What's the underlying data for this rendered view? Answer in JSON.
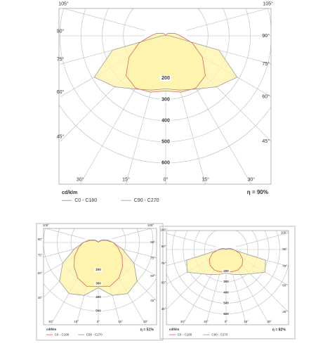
{
  "chart_data": [
    {
      "type": "polar",
      "unit": "cd/klm",
      "efficiency": "η = 90%",
      "angles": [
        0,
        15,
        30,
        45,
        60,
        75,
        90,
        105,
        120,
        135,
        150,
        165,
        180
      ],
      "rlim": [
        0,
        700
      ],
      "rticks": [
        200,
        300,
        400,
        500,
        600
      ],
      "angle_ticks": [
        {
          "value": 0,
          "label": "0°"
        },
        {
          "value": 15,
          "label": "15°"
        },
        {
          "value": 30,
          "label": "30°"
        },
        {
          "value": 45,
          "label": "45°"
        },
        {
          "value": 60,
          "label": "60°"
        },
        {
          "value": 75,
          "label": "75°"
        },
        {
          "value": 90,
          "label": "90°"
        },
        {
          "value": 105,
          "label": "105°"
        }
      ],
      "fill_color": "#fff4a8",
      "series": [
        {
          "name": "C0 - C180",
          "color": "#e06060",
          "values": [
            260,
            275,
            285,
            265,
            200,
            130,
            70,
            45,
            25,
            15,
            10,
            5,
            5
          ]
        },
        {
          "name": "C90 - C270",
          "color": "#9a9a9a",
          "values": [
            250,
            265,
            290,
            340,
            390,
            260,
            20,
            5,
            0,
            0,
            0,
            0,
            0
          ]
        }
      ]
    },
    {
      "type": "polar",
      "unit": "cd/klm",
      "efficiency": "η = 51%",
      "angles": [
        0,
        15,
        30,
        45,
        60,
        75,
        90,
        105,
        120,
        135,
        150,
        165,
        180
      ],
      "rlim": [
        0,
        600
      ],
      "rticks": [
        200,
        300,
        400,
        500
      ],
      "angle_ticks": [
        {
          "value": 0,
          "label": "0°"
        },
        {
          "value": 15,
          "label": "15°"
        },
        {
          "value": 30,
          "label": "30°"
        },
        {
          "value": 45,
          "label": "45°"
        },
        {
          "value": 60,
          "label": "60°"
        },
        {
          "value": 75,
          "label": "75°"
        },
        {
          "value": 90,
          "label": "90°"
        },
        {
          "value": 105,
          "label": "105°"
        }
      ],
      "fill_color": "#fff4a8",
      "series": [
        {
          "name": "C0 - C180",
          "color": "#e06060",
          "values": [
            320,
            330,
            300,
            250,
            200,
            150,
            110,
            70,
            40,
            20,
            10,
            5,
            5
          ]
        },
        {
          "name": "C90 - C270",
          "color": "#9a9a9a",
          "values": [
            330,
            400,
            430,
            400,
            300,
            180,
            110,
            60,
            30,
            10,
            5,
            0,
            0
          ]
        }
      ]
    },
    {
      "type": "polar",
      "unit": "cd/klm",
      "efficiency": "η = 82%",
      "angles": [
        0,
        15,
        30,
        45,
        60,
        75,
        90,
        105,
        120,
        135,
        150,
        165,
        180
      ],
      "rlim": [
        0,
        700
      ],
      "rticks": [
        200,
        300,
        400,
        500,
        600
      ],
      "angle_ticks": [
        {
          "value": 0,
          "label": "0°"
        },
        {
          "value": 15,
          "label": "15°"
        },
        {
          "value": 30,
          "label": "30°"
        },
        {
          "value": 45,
          "label": "45°"
        },
        {
          "value": 60,
          "label": "60°"
        },
        {
          "value": 75,
          "label": "75°"
        },
        {
          "value": 90,
          "label": "90°"
        },
        {
          "value": 105,
          "label": "105°"
        }
      ],
      "fill_color": "#fff4a8",
      "series": [
        {
          "name": "C0 - C180",
          "color": "#e06060",
          "values": [
            210,
            215,
            220,
            210,
            180,
            130,
            70,
            40,
            20,
            10,
            5,
            0,
            0
          ]
        },
        {
          "name": "C90 - C270",
          "color": "#9a9a9a",
          "values": [
            220,
            240,
            270,
            320,
            420,
            380,
            60,
            10,
            0,
            0,
            0,
            0,
            0
          ]
        }
      ]
    }
  ]
}
